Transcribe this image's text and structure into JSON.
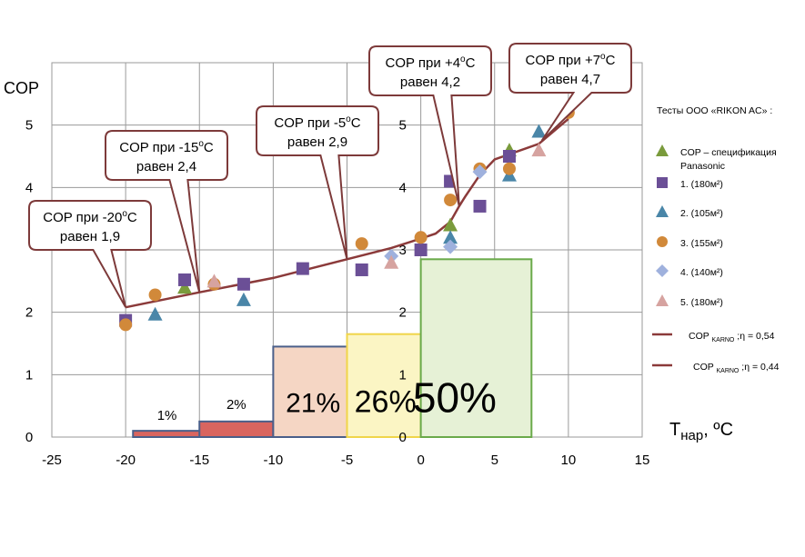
{
  "chart_data": {
    "type": "scatter",
    "ylabel": "COP",
    "xlabel_main": "T",
    "xlabel_sub": "нар",
    "xlabel_unit": ", ºC",
    "xlim": [
      -25,
      15
    ],
    "ylim": [
      0,
      6
    ],
    "xticks": [
      -25,
      -20,
      -15,
      -10,
      -5,
      0,
      5,
      10,
      15
    ],
    "yticks_left": [
      0,
      1,
      2,
      4,
      5
    ],
    "yticks_center": [
      0,
      1,
      2,
      3,
      4,
      5
    ],
    "grid": true,
    "legend_title": "Тесты ООО «RIKON AC» :",
    "legend": [
      {
        "key": "spec",
        "marker": "triangle",
        "color": "#7a9b3c",
        "label_lines": [
          "COP – спецификация",
          "Panasonic"
        ]
      },
      {
        "key": "s1",
        "marker": "square",
        "color": "#6b4f96",
        "label": "1.   (180м²)"
      },
      {
        "key": "s2",
        "marker": "triangle",
        "color": "#4a86a8",
        "label": "2.   (105м²)"
      },
      {
        "key": "s3",
        "marker": "circle",
        "color": "#d1893a",
        "label": "3.   (155м²)"
      },
      {
        "key": "s4",
        "marker": "diamond",
        "color": "#9fb1dd",
        "label": "4.   (140м²)"
      },
      {
        "key": "s5",
        "marker": "triangle",
        "color": "#d6a3a0",
        "label": "5.   (180м²)"
      },
      {
        "key": "carno054",
        "marker": "line",
        "color": "#8b3a3a",
        "label": "COP",
        "sub": "KARNO",
        "suffix": " ;η = 0,54"
      },
      {
        "key": "carno044",
        "marker": "line",
        "color": "#8b3a3a",
        "label": "COP",
        "sub": "KARNO",
        "suffix": " ;η = 0,44"
      }
    ],
    "series": [
      {
        "name": "COP – спецификация Panasonic",
        "marker": "triangle",
        "color": "#7a9b3c",
        "points": [
          [
            -16,
            2.4
          ],
          [
            2,
            3.4
          ],
          [
            6,
            4.6
          ]
        ]
      },
      {
        "name": "1.   (180м²)",
        "marker": "square",
        "color": "#6b4f96",
        "points": [
          [
            -20,
            1.87
          ],
          [
            -16,
            2.52
          ],
          [
            -12,
            2.45
          ],
          [
            -8,
            2.7
          ],
          [
            -4,
            2.68
          ],
          [
            0,
            3.0
          ],
          [
            2,
            4.1
          ],
          [
            4,
            3.7
          ],
          [
            6,
            4.5
          ]
        ]
      },
      {
        "name": "2.   (105м²)",
        "marker": "triangle",
        "color": "#4a86a8",
        "points": [
          [
            -18,
            1.97
          ],
          [
            -12,
            2.2
          ],
          [
            2,
            3.2
          ],
          [
            6,
            4.2
          ],
          [
            8,
            4.9
          ]
        ]
      },
      {
        "name": "3.   (155м²)",
        "marker": "circle",
        "color": "#d1893a",
        "points": [
          [
            -20,
            1.8
          ],
          [
            -18,
            2.28
          ],
          [
            -14,
            2.45
          ],
          [
            -4,
            3.1
          ],
          [
            0,
            3.2
          ],
          [
            2,
            3.8
          ],
          [
            4,
            4.3
          ],
          [
            6,
            4.3
          ],
          [
            10,
            5.2
          ]
        ]
      },
      {
        "name": "4.   (140м²)",
        "marker": "diamond",
        "color": "#9fb1dd",
        "points": [
          [
            -2,
            2.9
          ],
          [
            2,
            3.05
          ],
          [
            4,
            4.25
          ]
        ]
      },
      {
        "name": "5.   (180м²)",
        "marker": "triangle",
        "color": "#d6a3a0",
        "points": [
          [
            -14,
            2.5
          ],
          [
            -2,
            2.8
          ],
          [
            8,
            4.6
          ]
        ]
      }
    ],
    "curve": {
      "color": "#8b3a3a",
      "points": [
        [
          -20,
          2.08
        ],
        [
          -15,
          2.32
        ],
        [
          -10,
          2.55
        ],
        [
          -5,
          2.85
        ],
        [
          -2,
          3.03
        ],
        [
          0,
          3.18
        ],
        [
          1,
          3.26
        ],
        [
          2,
          3.45
        ],
        [
          2.6,
          3.7
        ],
        [
          3,
          3.85
        ],
        [
          4,
          4.2
        ],
        [
          5,
          4.45
        ],
        [
          8,
          4.7
        ],
        [
          10,
          5.1
        ]
      ]
    },
    "bars": [
      {
        "x0": -19.5,
        "x1": -10,
        "value": 0.1,
        "label": "1%",
        "fill": "#d9655f",
        "stroke": "#4a5f8a",
        "label_size": 15
      },
      {
        "x0": -15,
        "x1": -10,
        "value": 0.25,
        "label": "2%",
        "fill": "#d9655f",
        "stroke": "#4a5f8a",
        "label_size": 15
      },
      {
        "x0": -10,
        "x1": -5,
        "value": 1.45,
        "label": "21%",
        "fill": "#f5d6c4",
        "stroke": "#4a5f8a",
        "label_size": 30
      },
      {
        "x0": -5,
        "x1": 0,
        "value": 1.65,
        "label": "26%",
        "fill": "#fbf5c4",
        "stroke": "#f0d54a",
        "label_size": 34
      },
      {
        "x0": 0,
        "x1": 7.5,
        "value": 2.85,
        "label": "50%",
        "fill": "#e6f1d6",
        "stroke": "#6aaa4a",
        "label_size": 46
      }
    ],
    "annotations": [
      {
        "line1": "COP при -20",
        "sup": "o",
        "unit": "C",
        "line2": "равен 1,9",
        "tip": [
          -20,
          2.08
        ]
      },
      {
        "line1": "COP при -15",
        "sup": "o",
        "unit": "C",
        "line2": "равен 2,4",
        "tip": [
          -15,
          2.32
        ]
      },
      {
        "line1": "COP при -5",
        "sup": "o",
        "unit": "C",
        "line2": "равен 2,9",
        "tip": [
          -5,
          2.85
        ]
      },
      {
        "line1": "COP при +4",
        "sup": "o",
        "unit": "C",
        "line2": "равен 4,2",
        "tip": [
          2.6,
          3.7
        ]
      },
      {
        "line1": "COP при +7",
        "sup": "o",
        "unit": "C",
        "line2": "равен 4,7",
        "tip": [
          8.2,
          4.75
        ]
      }
    ]
  }
}
